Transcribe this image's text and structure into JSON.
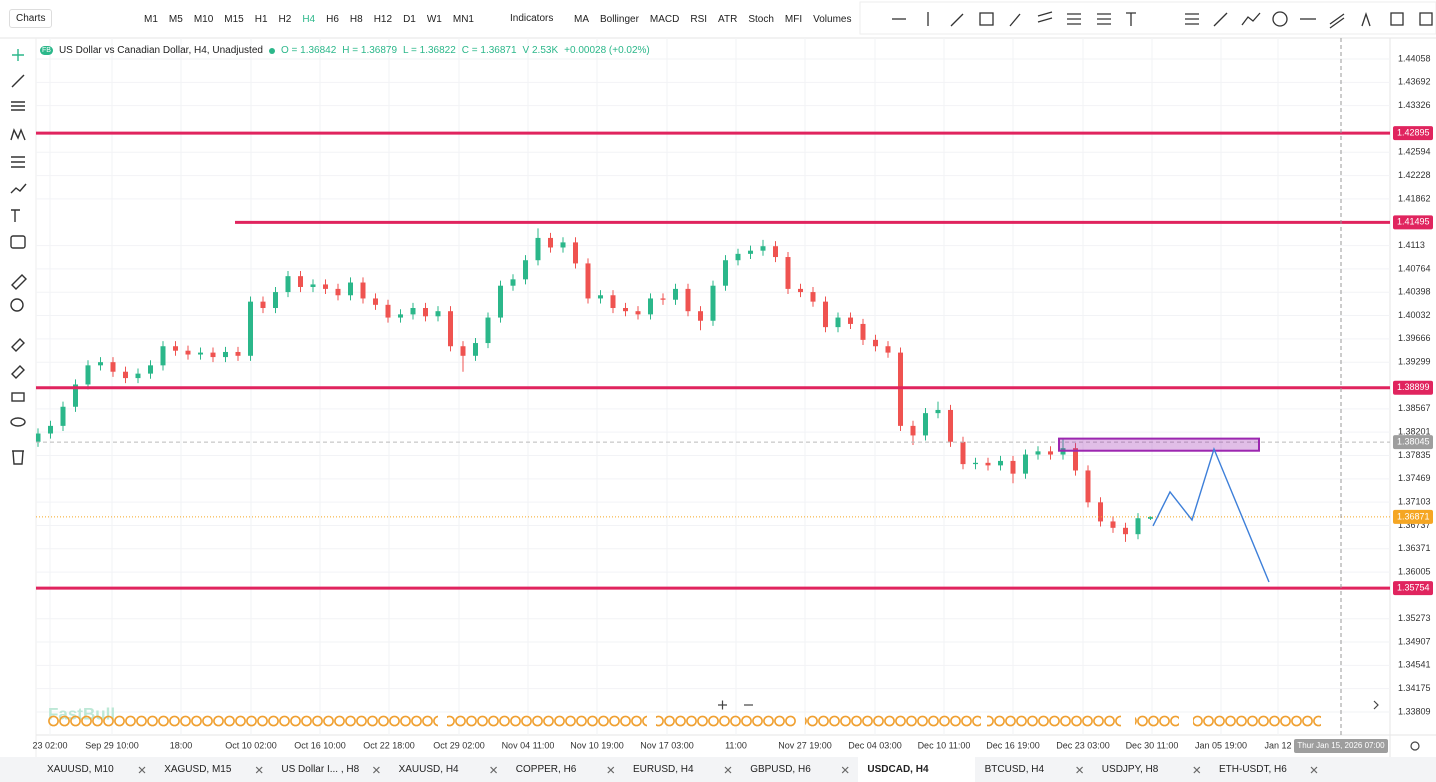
{
  "toolbar": {
    "symbol_menu": "Charts",
    "timeframes": [
      "M1",
      "M5",
      "M10",
      "M15",
      "H1",
      "H2",
      "H4",
      "H6",
      "H8",
      "H12",
      "D1",
      "W1",
      "MN1"
    ],
    "active_timeframe": 6,
    "indicators_menu": "Indicators",
    "indicators": [
      "MA",
      "Bollinger",
      "MACD",
      "RSI",
      "ATR",
      "Stoch",
      "MFI",
      "Volumes"
    ]
  },
  "legend": {
    "badge": "FB",
    "title": "US Dollar vs Canadian Dollar, H4, Unadjusted",
    "items": [
      "O = 1.36842",
      "H = 1.36879",
      "L = 1.36822",
      "C = 1.36871",
      "V 2.53K",
      "+0.00028 (+0.02%)"
    ]
  },
  "chart_data": {
    "type": "candlestick",
    "up_color": "#2bb78a",
    "down_color": "#ef5350",
    "candles": [
      [
        1.3805,
        1.3826,
        1.3797,
        1.3818
      ],
      [
        1.3818,
        1.3838,
        1.381,
        1.383
      ],
      [
        1.383,
        1.3868,
        1.3822,
        1.386
      ],
      [
        1.386,
        1.3903,
        1.3852,
        1.3895
      ],
      [
        1.3895,
        1.3933,
        1.3887,
        1.3925
      ],
      [
        1.3925,
        1.3938,
        1.3917,
        1.393
      ],
      [
        1.393,
        1.3938,
        1.3907,
        1.3915
      ],
      [
        1.3915,
        1.3923,
        1.3897,
        1.3905
      ],
      [
        1.3905,
        1.392,
        1.3897,
        1.3912
      ],
      [
        1.3912,
        1.3933,
        1.3904,
        1.3925
      ],
      [
        1.3925,
        1.3963,
        1.3917,
        1.3955
      ],
      [
        1.3955,
        1.3963,
        1.394,
        1.3948
      ],
      [
        1.3948,
        1.3956,
        1.3934,
        1.3942
      ],
      [
        1.3942,
        1.3953,
        1.3934,
        1.3945
      ],
      [
        1.3945,
        1.3953,
        1.393,
        1.3938
      ],
      [
        1.3938,
        1.3954,
        1.393,
        1.3946
      ],
      [
        1.3946,
        1.3954,
        1.3932,
        1.394
      ],
      [
        1.394,
        1.4033,
        1.3932,
        1.4025
      ],
      [
        1.4025,
        1.4033,
        1.4007,
        1.4015
      ],
      [
        1.4015,
        1.4048,
        1.4007,
        1.404
      ],
      [
        1.404,
        1.4073,
        1.4032,
        1.4065
      ],
      [
        1.4065,
        1.4073,
        1.404,
        1.4048
      ],
      [
        1.4048,
        1.406,
        1.404,
        1.4052
      ],
      [
        1.4052,
        1.406,
        1.4037,
        1.4045
      ],
      [
        1.4045,
        1.4053,
        1.4027,
        1.4035
      ],
      [
        1.4035,
        1.4063,
        1.4027,
        1.4055
      ],
      [
        1.4055,
        1.4063,
        1.4022,
        1.403
      ],
      [
        1.403,
        1.4038,
        1.4012,
        1.402
      ],
      [
        1.402,
        1.4028,
        1.3992,
        1.4
      ],
      [
        1.4,
        1.4013,
        1.3992,
        1.4005
      ],
      [
        1.4005,
        1.4023,
        1.3997,
        1.4015
      ],
      [
        1.4015,
        1.4023,
        1.3994,
        1.4002
      ],
      [
        1.4002,
        1.4018,
        1.3994,
        1.401
      ],
      [
        1.401,
        1.4018,
        1.3947,
        1.3955
      ],
      [
        1.3955,
        1.3963,
        1.3915,
        1.394
      ],
      [
        1.394,
        1.3968,
        1.3932,
        1.396
      ],
      [
        1.396,
        1.4008,
        1.3952,
        1.4
      ],
      [
        1.4,
        1.4058,
        1.3992,
        1.405
      ],
      [
        1.405,
        1.4068,
        1.4042,
        1.406
      ],
      [
        1.406,
        1.4098,
        1.4052,
        1.409
      ],
      [
        1.409,
        1.414,
        1.4082,
        1.4125
      ],
      [
        1.4125,
        1.4133,
        1.4102,
        1.411
      ],
      [
        1.411,
        1.4126,
        1.4102,
        1.4118
      ],
      [
        1.4118,
        1.4126,
        1.4077,
        1.4085
      ],
      [
        1.4085,
        1.4093,
        1.4022,
        1.403
      ],
      [
        1.403,
        1.4043,
        1.4022,
        1.4035
      ],
      [
        1.4035,
        1.4043,
        1.4007,
        1.4015
      ],
      [
        1.4015,
        1.4023,
        1.4002,
        1.401
      ],
      [
        1.401,
        1.4018,
        1.3997,
        1.4005
      ],
      [
        1.4005,
        1.4038,
        1.3997,
        1.403
      ],
      [
        1.403,
        1.4038,
        1.402,
        1.4028
      ],
      [
        1.4028,
        1.4053,
        1.402,
        1.4045
      ],
      [
        1.4045,
        1.4053,
        1.4002,
        1.401
      ],
      [
        1.401,
        1.4018,
        1.398,
        1.3995
      ],
      [
        1.3995,
        1.4058,
        1.3987,
        1.405
      ],
      [
        1.405,
        1.4098,
        1.4042,
        1.409
      ],
      [
        1.409,
        1.4108,
        1.4082,
        1.41
      ],
      [
        1.41,
        1.4113,
        1.4092,
        1.4105
      ],
      [
        1.4105,
        1.4122,
        1.4097,
        1.4112
      ],
      [
        1.4112,
        1.412,
        1.4087,
        1.4095
      ],
      [
        1.4095,
        1.4103,
        1.4037,
        1.4045
      ],
      [
        1.4045,
        1.4053,
        1.4032,
        1.404
      ],
      [
        1.404,
        1.4048,
        1.4017,
        1.4025
      ],
      [
        1.4025,
        1.4033,
        1.3977,
        1.3985
      ],
      [
        1.3985,
        1.4008,
        1.3977,
        1.4
      ],
      [
        1.4,
        1.4008,
        1.3982,
        1.399
      ],
      [
        1.399,
        1.3998,
        1.3957,
        1.3965
      ],
      [
        1.3965,
        1.3973,
        1.3947,
        1.3955
      ],
      [
        1.3955,
        1.3963,
        1.3937,
        1.3945
      ],
      [
        1.3945,
        1.3953,
        1.3822,
        1.383
      ],
      [
        1.383,
        1.3838,
        1.38,
        1.3815
      ],
      [
        1.3815,
        1.3858,
        1.3807,
        1.385
      ],
      [
        1.385,
        1.3868,
        1.3842,
        1.3855
      ],
      [
        1.3855,
        1.3863,
        1.3797,
        1.3805
      ],
      [
        1.3805,
        1.3813,
        1.3762,
        1.377
      ],
      [
        1.377,
        1.378,
        1.3762,
        1.3772
      ],
      [
        1.3772,
        1.378,
        1.376,
        1.3768
      ],
      [
        1.3768,
        1.3783,
        1.376,
        1.3775
      ],
      [
        1.3775,
        1.3783,
        1.374,
        1.3755
      ],
      [
        1.3755,
        1.3793,
        1.3747,
        1.3785
      ],
      [
        1.3785,
        1.3798,
        1.3777,
        1.379
      ],
      [
        1.379,
        1.3798,
        1.3777,
        1.3785
      ],
      [
        1.3785,
        1.381,
        1.3777,
        1.3795
      ],
      [
        1.3795,
        1.3803,
        1.3752,
        1.376
      ],
      [
        1.376,
        1.3768,
        1.3702,
        1.371
      ],
      [
        1.371,
        1.3718,
        1.3672,
        1.368
      ],
      [
        1.368,
        1.3688,
        1.3662,
        1.367
      ],
      [
        1.367,
        1.3678,
        1.3648,
        1.366
      ],
      [
        1.366,
        1.3693,
        1.3652,
        1.3685
      ],
      [
        1.36842,
        1.36879,
        1.36822,
        1.36871
      ]
    ],
    "xlim": [
      -0.16,
      108.16
    ],
    "xticks": [
      {
        "value": 0.96,
        "label": "23 02:00"
      },
      {
        "value": 5.92,
        "label": "Sep 29 10:00"
      },
      {
        "value": 11.44,
        "label": "18:00"
      },
      {
        "value": 17.04,
        "label": "Oct 10 02:00"
      },
      {
        "value": 22.56,
        "label": "Oct 16 10:00"
      },
      {
        "value": 28.08,
        "label": "Oct 22 18:00"
      },
      {
        "value": 33.68,
        "label": "Oct 29 02:00"
      },
      {
        "value": 39.2,
        "label": "Nov 04 11:00"
      },
      {
        "value": 44.72,
        "label": "Nov 10 19:00"
      },
      {
        "value": 50.32,
        "label": "Nov 17 03:00"
      },
      {
        "value": 55.84,
        "label": "11:00"
      },
      {
        "value": 61.36,
        "label": "Nov 27 19:00"
      },
      {
        "value": 66.96,
        "label": "Dec 04 03:00"
      },
      {
        "value": 72.48,
        "label": "Dec 10 11:00"
      },
      {
        "value": 78,
        "label": "Dec 16 19:00"
      },
      {
        "value": 83.6,
        "label": "Dec 23 03:00"
      },
      {
        "value": 89.12,
        "label": "Dec 30 11:00"
      },
      {
        "value": 94.64,
        "label": "Jan 05 19:00"
      },
      {
        "value": 99.2,
        "label": "Jan 12"
      }
    ],
    "ylim": [
      1.33448,
      1.44388
    ],
    "yticks": [
      1.44058,
      1.43692,
      1.43326,
      1.42594,
      1.42228,
      1.41862,
      1.4113,
      1.40764,
      1.40398,
      1.40032,
      1.39666,
      1.39299,
      1.38567,
      1.38201,
      1.37835,
      1.37469,
      1.37103,
      1.36737,
      1.36371,
      1.36005,
      1.35273,
      1.34907,
      1.34541,
      1.34175,
      1.33809
    ],
    "grid": true,
    "line_color": "#e0245e",
    "hlines": [
      {
        "value": 1.42895,
        "start": -0.16
      },
      {
        "value": 1.41495,
        "start": 15.76
      },
      {
        "value": 1.38899,
        "start": -0.16
      },
      {
        "value": 1.35754,
        "start": -0.16
      }
    ],
    "zone": {
      "x": [
        81.68,
        97.68
      ],
      "y": [
        1.3791,
        1.381
      ],
      "color": "#9c27b0"
    },
    "projection": {
      "x": [
        89.2,
        90.56,
        92.32,
        94.08,
        98.48
      ],
      "values": [
        1.36729,
        1.37263,
        1.36823,
        1.37937,
        1.3585
      ],
      "color": "#3d7fd9"
    },
    "current_price": {
      "value": 1.36871,
      "color": "#f5a623"
    },
    "crosshair": {
      "x": 104.24,
      "value": 1.38045,
      "label": "Thur Jan 15, 2026 07:00"
    },
    "watermark": "FastBull"
  },
  "tabs": [
    "XAUUSD, M10",
    "XAGUSD, M15",
    "US Dollar I... , H8",
    "XAUUSD, H4",
    "COPPER, H6",
    "EURUSD, H4",
    "GBPUSD, H6",
    "USDCAD, H4",
    "BTCUSD, H4",
    "USDJPY, H8",
    "ETH-USDT, H6"
  ],
  "active_tab": 7
}
